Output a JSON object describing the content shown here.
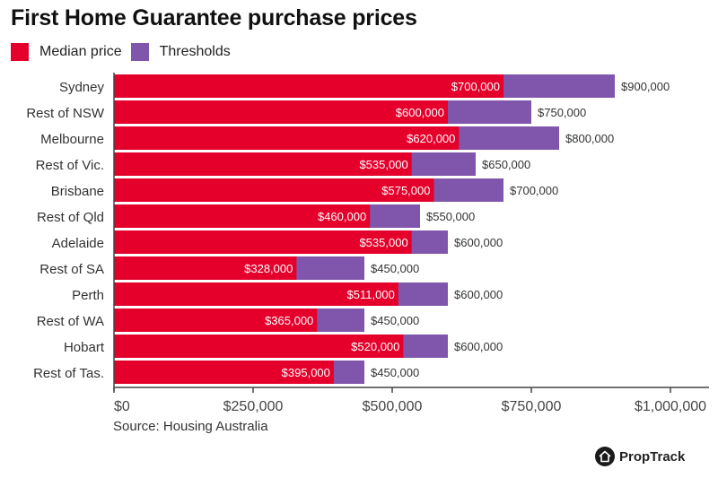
{
  "chart_data": {
    "type": "bar",
    "orientation": "horizontal",
    "stacked": "overlay",
    "title": "First Home Guarantee purchase prices",
    "categories": [
      "Sydney",
      "Rest of NSW",
      "Melbourne",
      "Rest of Vic.",
      "Brisbane",
      "Rest of Qld",
      "Adelaide",
      "Rest of SA",
      "Perth",
      "Rest of WA",
      "Hobart",
      "Rest of Tas."
    ],
    "series": [
      {
        "name": "Median price",
        "color": "#e4002b",
        "values": [
          700000,
          600000,
          620000,
          535000,
          575000,
          460000,
          535000,
          328000,
          511000,
          365000,
          520000,
          395000
        ],
        "labels": [
          "$700,000",
          "$600,000",
          "$620,000",
          "$535,000",
          "$575,000",
          "$460,000",
          "$535,000",
          "$328,000",
          "$511,000",
          "$365,000",
          "$520,000",
          "$395,000"
        ]
      },
      {
        "name": "Thresholds",
        "color": "#7f56ac",
        "values": [
          900000,
          750000,
          800000,
          650000,
          700000,
          550000,
          600000,
          450000,
          600000,
          450000,
          600000,
          450000
        ],
        "labels": [
          "$900,000",
          "$750,000",
          "$800,000",
          "$650,000",
          "$700,000",
          "$550,000",
          "$600,000",
          "$450,000",
          "$600,000",
          "$450,000",
          "$600,000",
          "$450,000"
        ]
      }
    ],
    "xlabel": "",
    "ylabel": "",
    "xlim": [
      0,
      1050000
    ],
    "xticks": [
      0,
      250000,
      500000,
      750000,
      1000000
    ],
    "xtick_labels": [
      "$0",
      "$250,000",
      "$500,000",
      "$750,000",
      "$1,000,000"
    ],
    "grid": false,
    "legend": "top-left"
  },
  "source": "Source: Housing Australia",
  "brand": "PropTrack"
}
